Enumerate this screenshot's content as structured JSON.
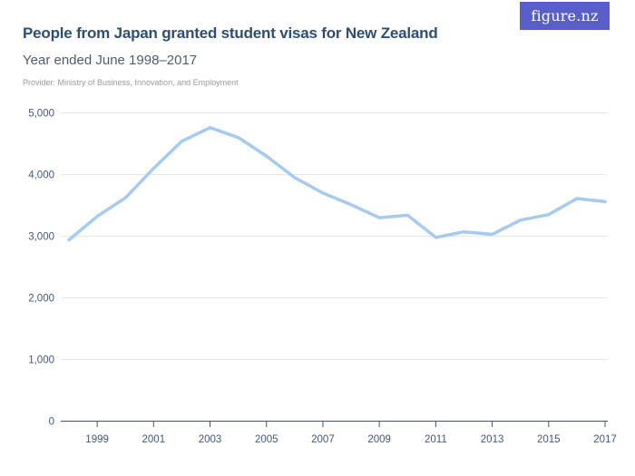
{
  "header": {
    "title": "People from Japan granted student visas for New Zealand",
    "subtitle": "Year ended June 1998–2017",
    "provider": "Provider: Ministry of Business, Innovation, and Employment"
  },
  "logo": {
    "text": "figure.nz",
    "bg_color": "#5A5EC8",
    "text_color": "#FFFFFF"
  },
  "colors": {
    "title": "#2E4E74",
    "subtitle": "#525E6E",
    "provider": "#9B9B9E",
    "line": "#A6CBEE",
    "axis": "#44546A",
    "tick_label": "#46587C",
    "gridline": "#E7E7E7",
    "background": "#FFFFFF"
  },
  "chart_data": {
    "type": "line",
    "title": "People from Japan granted student visas for New Zealand",
    "subtitle": "Year ended June 1998–2017",
    "x": [
      1998,
      1999,
      2000,
      2001,
      2002,
      2003,
      2004,
      2005,
      2006,
      2007,
      2008,
      2009,
      2010,
      2011,
      2012,
      2013,
      2014,
      2015,
      2016,
      2017
    ],
    "values": [
      2940,
      3320,
      3620,
      4100,
      4540,
      4760,
      4600,
      4300,
      3950,
      3700,
      3510,
      3300,
      3340,
      2980,
      3070,
      3030,
      3260,
      3350,
      3610,
      3560
    ],
    "xlim": [
      1998,
      2017
    ],
    "ylim": [
      0,
      5000
    ],
    "x_tick_labels": [
      "1999",
      "2001",
      "2003",
      "2005",
      "2007",
      "2009",
      "2011",
      "2013",
      "2015",
      "2017"
    ],
    "y_ticks": [
      {
        "value": 0,
        "label": "0"
      },
      {
        "value": 1000,
        "label": "1,000"
      },
      {
        "value": 2000,
        "label": "2,000"
      },
      {
        "value": 3000,
        "label": "3,000"
      },
      {
        "value": 4000,
        "label": "4,000"
      },
      {
        "value": 5000,
        "label": "5,000"
      }
    ],
    "grid": "horizontal",
    "legend": "none"
  }
}
